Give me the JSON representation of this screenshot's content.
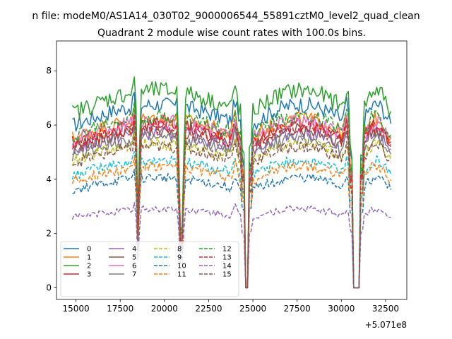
{
  "chart_data": {
    "type": "line",
    "suptitle": "n file: modeM0/AS1A14_030T02_9000006544_55891cztM0_level2_quad_clean",
    "title": "Quadrant 2 module wise count rates with 100.0s bins.",
    "xlabel": "",
    "ylabel": "",
    "x_offset_label": "+5.071e8",
    "xlim": [
      13900,
      33700
    ],
    "ylim": [
      -0.43,
      9.1
    ],
    "x_ticks": [
      15000,
      17500,
      20000,
      22500,
      25000,
      27500,
      30000,
      32500
    ],
    "x_tick_labels": [
      "15000",
      "17500",
      "20000",
      "22500",
      "25000",
      "27500",
      "30000",
      "32500"
    ],
    "y_ticks": [
      0,
      2,
      4,
      6,
      8
    ],
    "y_tick_labels": [
      "0",
      "2",
      "4",
      "6",
      "8"
    ],
    "x_range": [
      14800,
      32800
    ],
    "x_step": 100,
    "gaps": [
      [
        24550,
        24750
      ],
      [
        30650,
        31050
      ]
    ],
    "dips": [
      18500,
      20950
    ],
    "legend_position": "lower-left",
    "legend_columns": 4,
    "series": [
      {
        "name": "0",
        "color": "#1f77b4",
        "dashed": false,
        "level": 6.5
      },
      {
        "name": "1",
        "color": "#ff7f0e",
        "dashed": false,
        "level": 6.0
      },
      {
        "name": "2",
        "color": "#2ca02c",
        "dashed": false,
        "level": 7.0
      },
      {
        "name": "3",
        "color": "#d62728",
        "dashed": false,
        "level": 5.8
      },
      {
        "name": "4",
        "color": "#9467bd",
        "dashed": false,
        "level": 5.5
      },
      {
        "name": "5",
        "color": "#8c564b",
        "dashed": false,
        "level": 5.6
      },
      {
        "name": "6",
        "color": "#e377c2",
        "dashed": false,
        "level": 5.9
      },
      {
        "name": "7",
        "color": "#7f7f7f",
        "dashed": false,
        "level": 5.3
      },
      {
        "name": "8",
        "color": "#bcbd22",
        "dashed": true,
        "level": 5.1
      },
      {
        "name": "9",
        "color": "#17becf",
        "dashed": true,
        "level": 4.5
      },
      {
        "name": "10",
        "color": "#1f77b4",
        "dashed": true,
        "level": 3.9
      },
      {
        "name": "11",
        "color": "#ff7f0e",
        "dashed": true,
        "level": 4.3
      },
      {
        "name": "12",
        "color": "#2ca02c",
        "dashed": true,
        "level": 6.1
      },
      {
        "name": "13",
        "color": "#d62728",
        "dashed": true,
        "level": 5.7
      },
      {
        "name": "14",
        "color": "#9467bd",
        "dashed": true,
        "level": 2.8
      },
      {
        "name": "15",
        "color": "#8c564b",
        "dashed": true,
        "level": 5.0
      }
    ]
  }
}
